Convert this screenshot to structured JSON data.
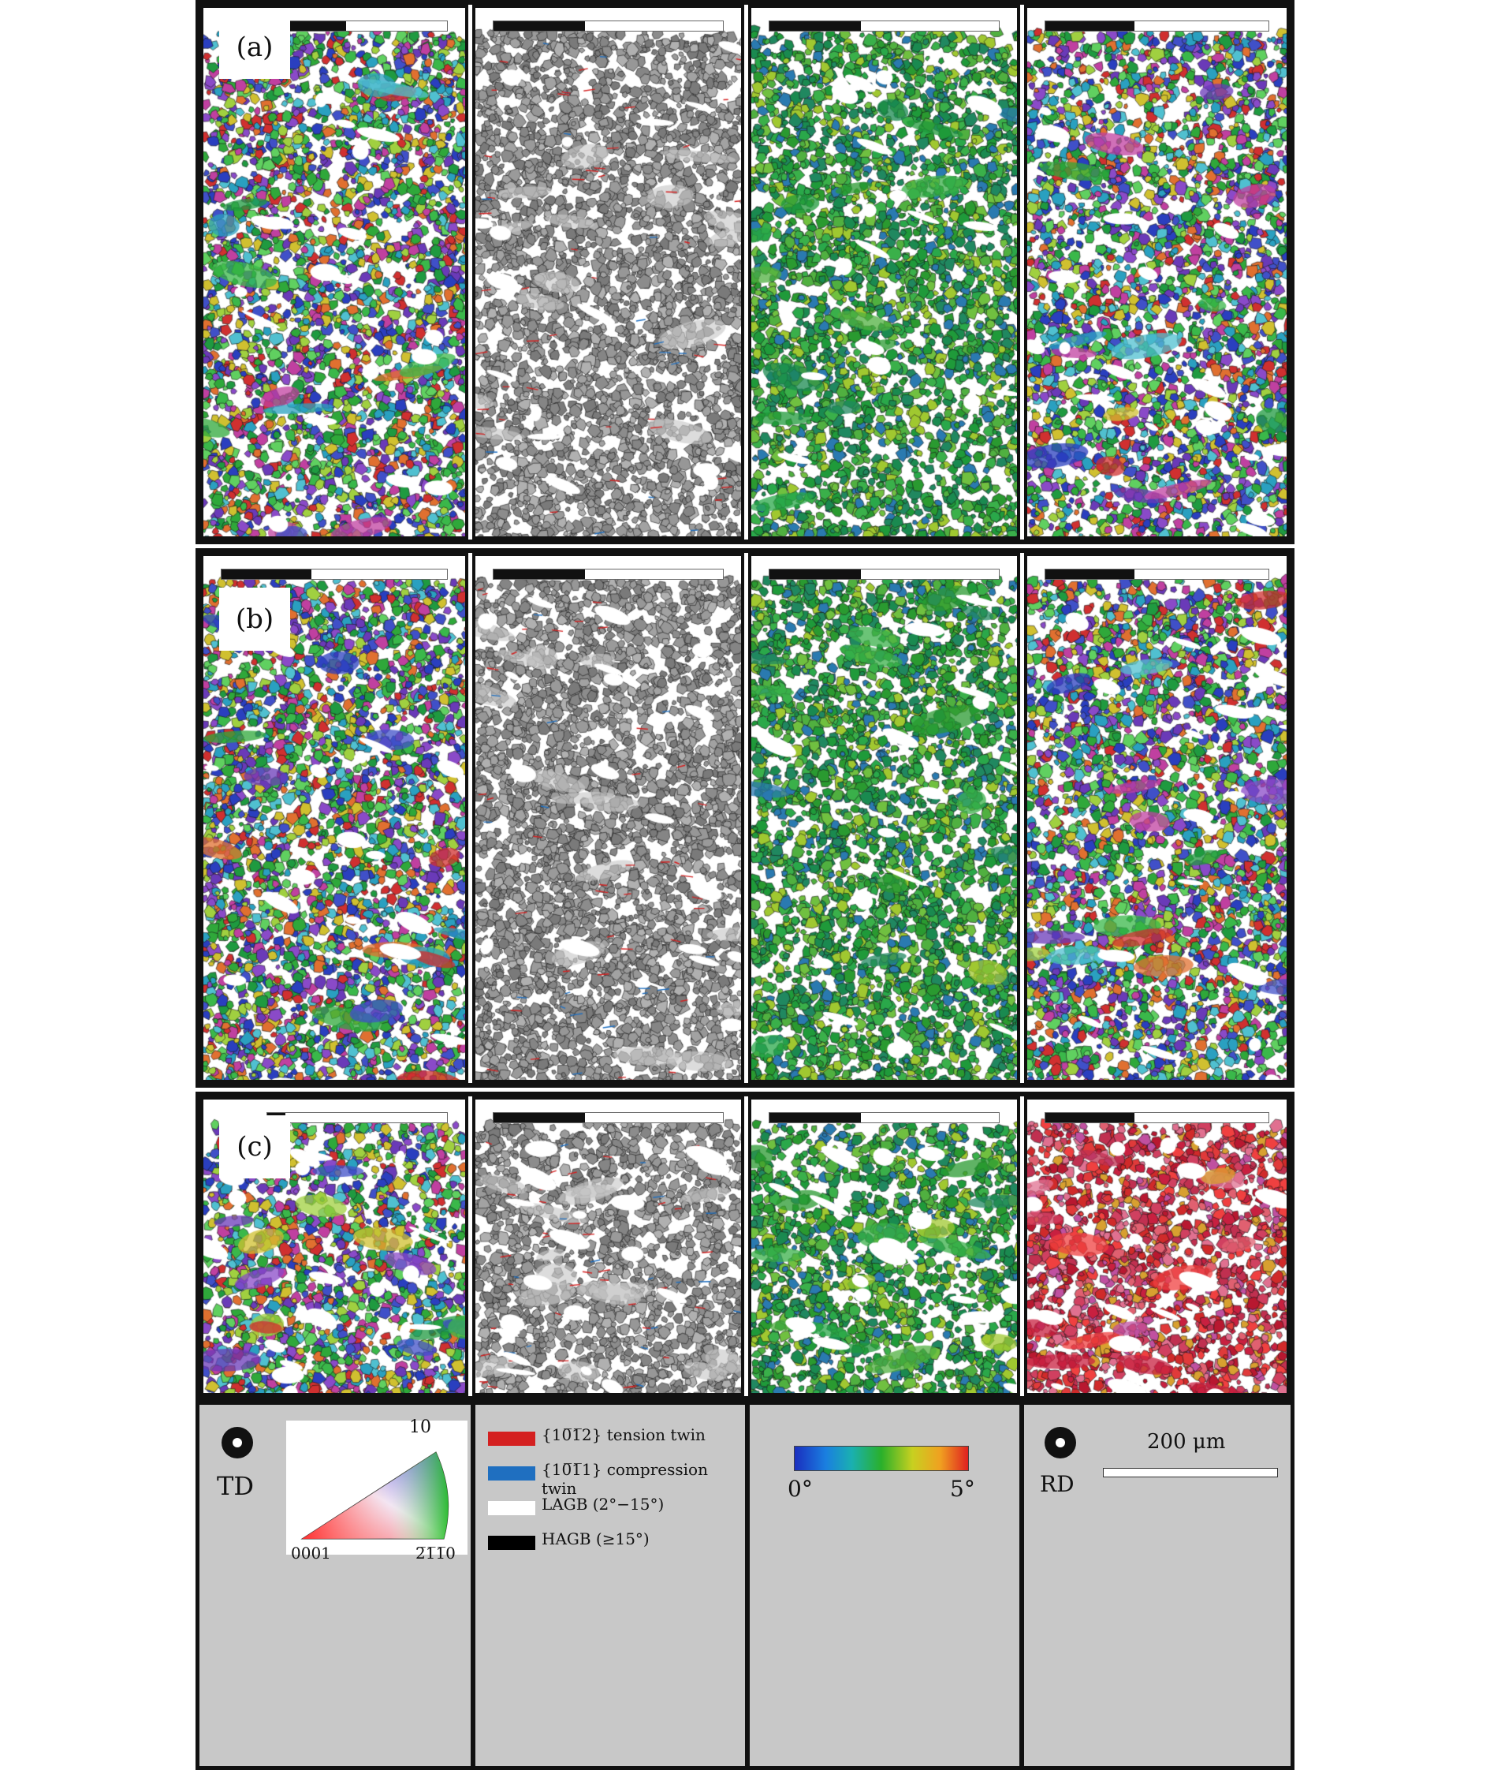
{
  "rows": [
    {
      "label": "(a)"
    },
    {
      "label": "(b)"
    },
    {
      "label": "(c)"
    }
  ],
  "legend": {
    "ipf": {
      "axis_label": "TD",
      "corner_top": "10̅1̅0",
      "corner_top_display": "10",
      "corner_left": "0001",
      "corner_right": "2̅1̅1̅0"
    },
    "boundaries": [
      {
        "label": "tension twin",
        "prefix": "{10̅1̅2}",
        "color": "#d42020"
      },
      {
        "label": "compression twin",
        "prefix": "{10̅1̅1}",
        "color": "#1f6fc0"
      },
      {
        "label": "LAGB (2°−15°)",
        "color": "#ffffff"
      },
      {
        "label": "HAGB (≥15°)",
        "color": "#000000"
      }
    ],
    "kam": {
      "min_label": "0°",
      "max_label": "5°"
    },
    "ipf_rd": {
      "axis_label": "RD",
      "scale_label": "200 μm"
    }
  },
  "colors": {
    "tension_twin": "#d42020",
    "compression_twin": "#1f6fc0",
    "legend_bg": "#c8c8c8"
  }
}
